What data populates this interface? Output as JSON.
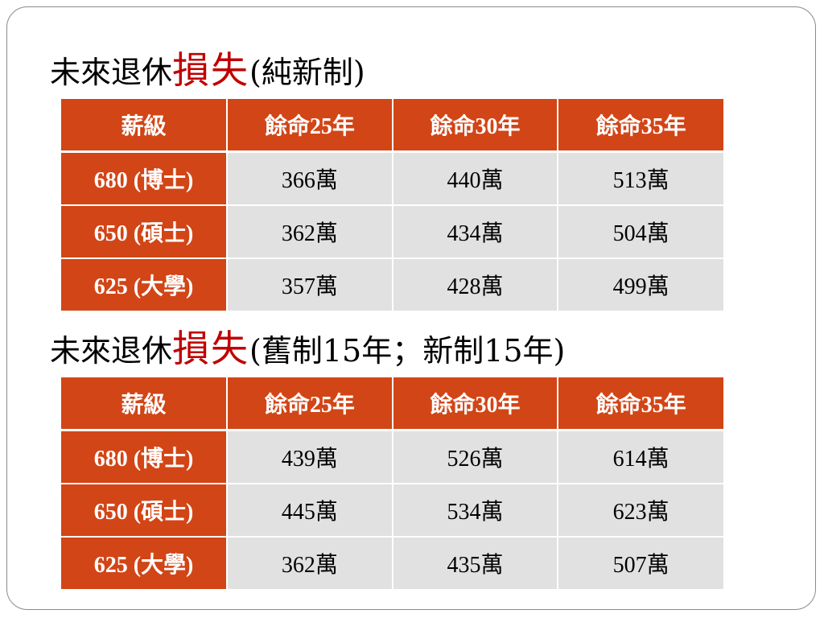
{
  "section1": {
    "title_prefix": "未來退休",
    "title_highlight": "損失",
    "title_suffix": "(純新制)",
    "headers": [
      "薪級",
      "餘命25年",
      "餘命30年",
      "餘命35年"
    ],
    "rows": [
      {
        "label": "680 (博士)",
        "values": [
          "366萬",
          "440萬",
          "513萬"
        ]
      },
      {
        "label": "650 (碩士)",
        "values": [
          "362萬",
          "434萬",
          "504萬"
        ]
      },
      {
        "label": "625 (大學)",
        "values": [
          "357萬",
          "428萬",
          "499萬"
        ]
      }
    ]
  },
  "section2": {
    "title_prefix": "未來退休",
    "title_highlight": "損失",
    "title_suffix": "(舊制15年；新制15年)",
    "headers": [
      "薪級",
      "餘命25年",
      "餘命30年",
      "餘命35年"
    ],
    "rows": [
      {
        "label": "680 (博士)",
        "values": [
          "439萬",
          "526萬",
          "614萬"
        ]
      },
      {
        "label": "650 (碩士)",
        "values": [
          "445萬",
          "534萬",
          "623萬"
        ]
      },
      {
        "label": "625 (大學)",
        "values": [
          "362萬",
          "435萬",
          "507萬"
        ]
      }
    ]
  },
  "colors": {
    "header_fill": "#d24516",
    "cell_fill": "#e1e1e1",
    "highlight_text": "#c00000"
  }
}
